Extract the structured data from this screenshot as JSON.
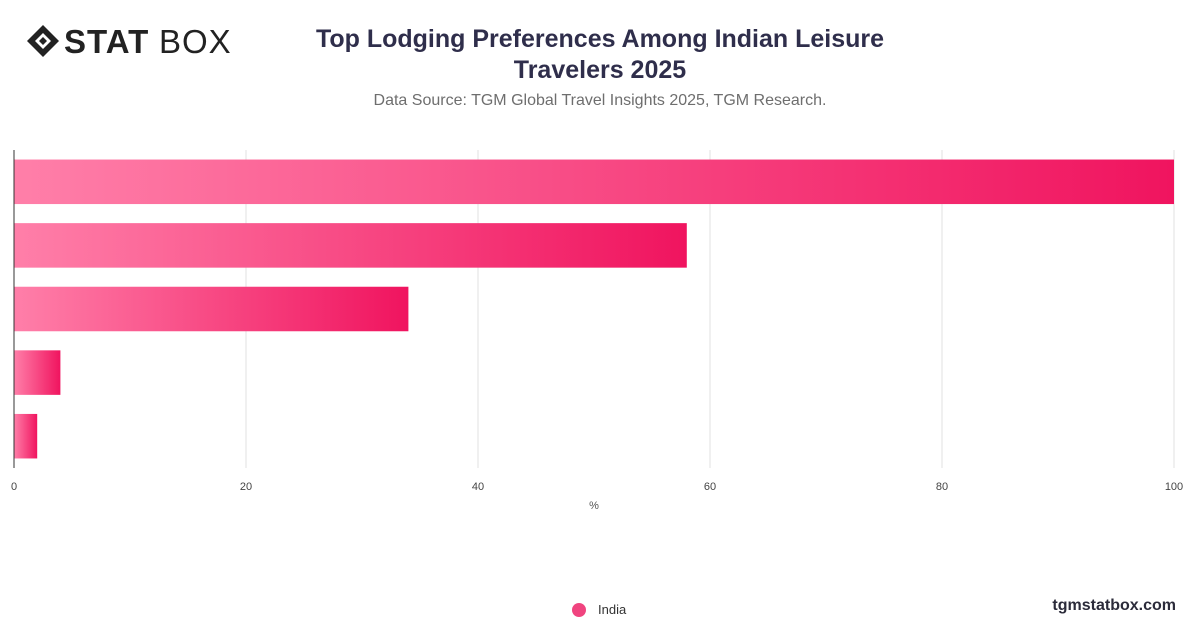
{
  "brand": {
    "logo_bold": "STAT",
    "logo_light": "BOX",
    "watermark": "tgmstatbox.com"
  },
  "colors": {
    "bar_start": "#ff7fa9",
    "bar_end": "#f0145f",
    "legend_dot": "#f0447f",
    "grid": "#e0e0e0"
  },
  "chart_data": {
    "type": "bar",
    "orientation": "horizontal",
    "title": "Top Lodging Preferences Among Indian Leisure Travelers 2025",
    "subtitle": "Data Source: TGM Global Travel Insights 2025, TGM Research.",
    "xlabel": "%",
    "ylabel": "",
    "xlim": [
      0,
      100
    ],
    "xticks": [
      0,
      20,
      40,
      60,
      80,
      100
    ],
    "categories": [
      "",
      "",
      "",
      "",
      ""
    ],
    "series": [
      {
        "name": "India",
        "values": [
          100,
          58,
          34,
          4,
          2
        ]
      }
    ],
    "grid": true,
    "legend_position": "bottom"
  }
}
